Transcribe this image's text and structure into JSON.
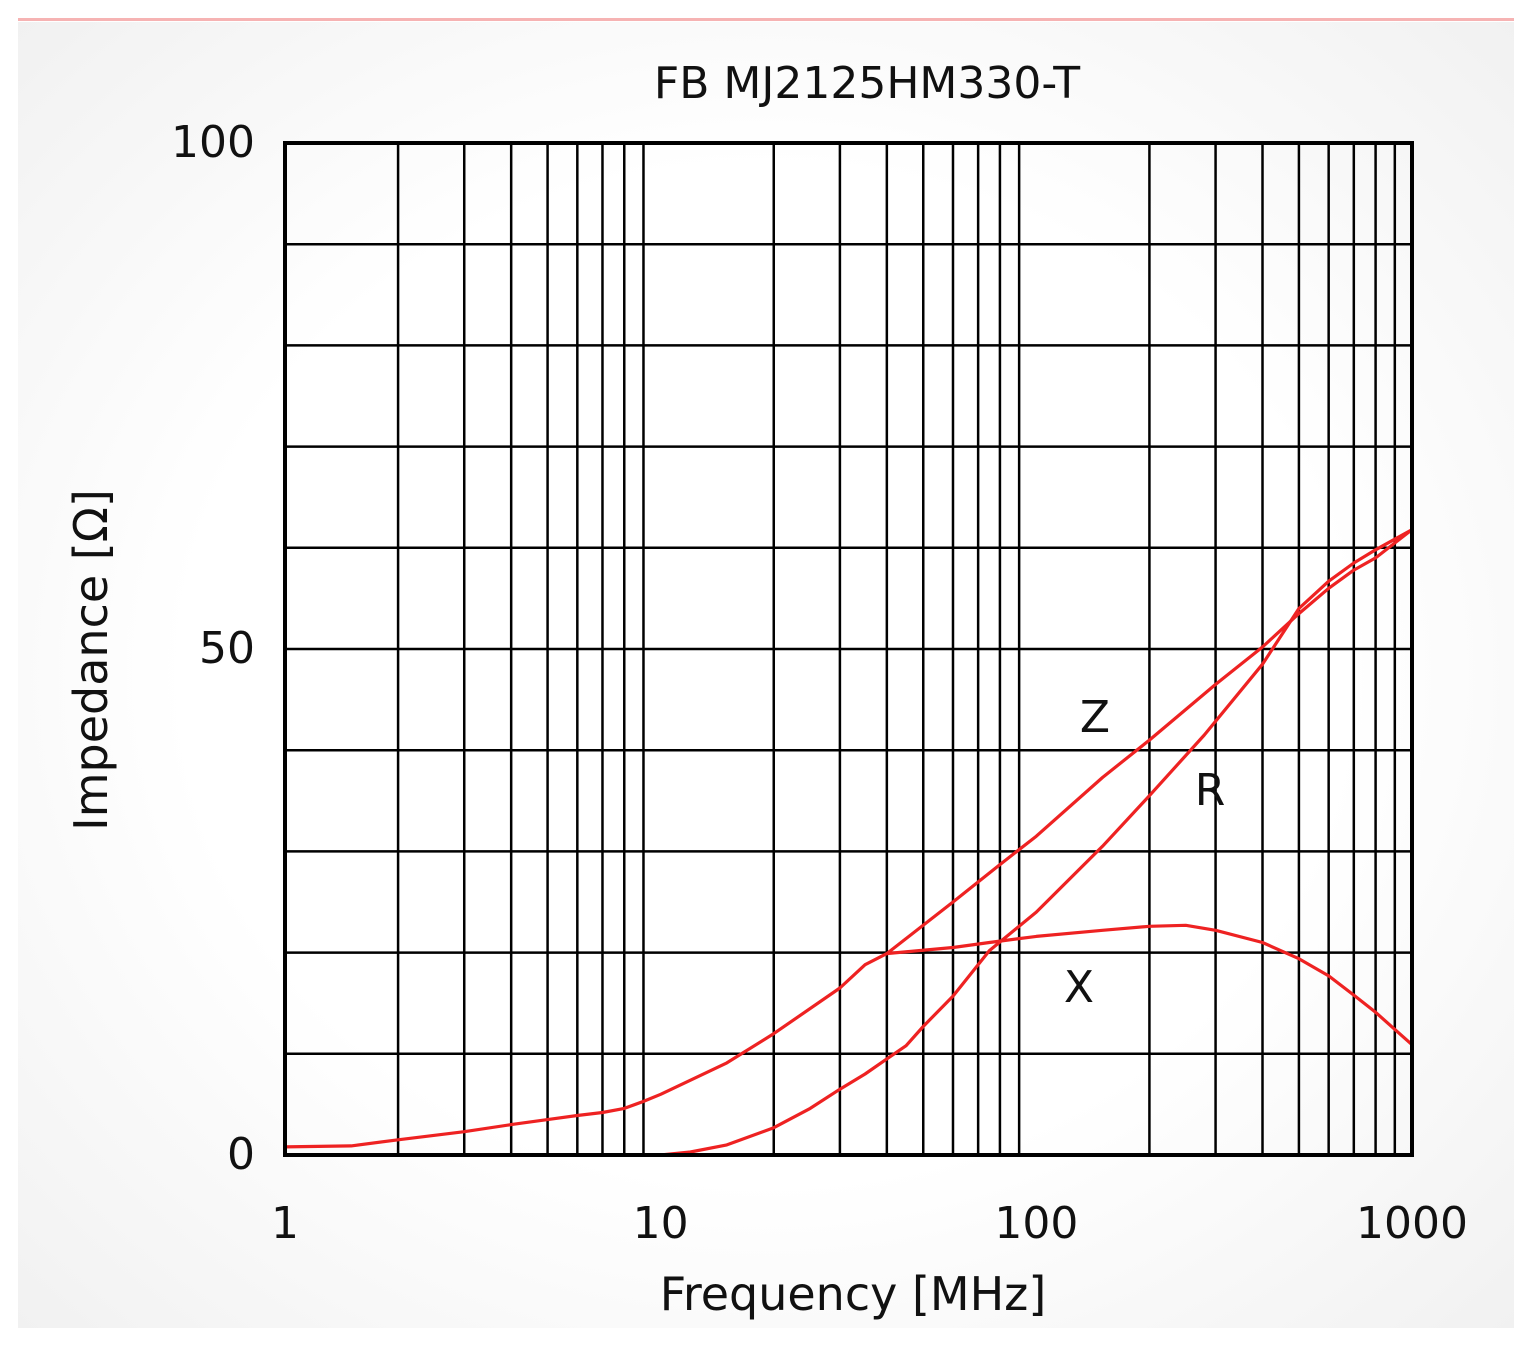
{
  "chart_data": {
    "type": "line",
    "title": "FB  MJ2125HM330-T",
    "xlabel": "Frequency [MHz]",
    "ylabel": "Impedance [Ω]",
    "xscale": "log",
    "xlim": [
      1,
      1000
    ],
    "ylim": [
      0,
      100
    ],
    "x_ticks": [
      "1",
      "10",
      "100",
      "1000"
    ],
    "y_ticks": [
      "0",
      "50",
      "100"
    ],
    "grid": true,
    "colors": {
      "curve": "#ee2222",
      "grid": "#000000"
    },
    "series": [
      {
        "name": "Z",
        "points": [
          [
            1,
            0.8
          ],
          [
            1.5,
            0.9
          ],
          [
            2,
            1.5
          ],
          [
            3,
            2.3
          ],
          [
            4,
            3.0
          ],
          [
            5,
            3.5
          ],
          [
            6,
            3.9
          ],
          [
            7,
            4.2
          ],
          [
            8,
            4.6
          ],
          [
            9,
            5.3
          ],
          [
            10,
            6.0
          ],
          [
            15,
            9.1
          ],
          [
            20,
            12.0
          ],
          [
            30,
            16.5
          ],
          [
            35,
            18.8
          ],
          [
            40,
            19.9
          ],
          [
            60,
            25.0
          ],
          [
            80,
            28.7
          ],
          [
            100,
            31.5
          ],
          [
            150,
            37.3
          ],
          [
            200,
            41.0
          ],
          [
            300,
            46.5
          ],
          [
            400,
            50.2
          ],
          [
            500,
            53.5
          ],
          [
            600,
            56.0
          ],
          [
            700,
            57.8
          ],
          [
            800,
            59.0
          ],
          [
            1000,
            61.8
          ]
        ]
      },
      {
        "name": "R",
        "points": [
          [
            1,
            0
          ],
          [
            10,
            0
          ],
          [
            12,
            0.3
          ],
          [
            15,
            1.0
          ],
          [
            20,
            2.7
          ],
          [
            25,
            4.6
          ],
          [
            30,
            6.5
          ],
          [
            35,
            8.0
          ],
          [
            40,
            9.5
          ],
          [
            45,
            10.8
          ],
          [
            50,
            12.7
          ],
          [
            60,
            15.7
          ],
          [
            75,
            20.2
          ],
          [
            100,
            24.0
          ],
          [
            150,
            30.5
          ],
          [
            200,
            35.5
          ],
          [
            280,
            41.5
          ],
          [
            400,
            48.5
          ],
          [
            500,
            54.0
          ],
          [
            600,
            56.7
          ],
          [
            700,
            58.5
          ],
          [
            800,
            59.8
          ],
          [
            1000,
            61.8
          ]
        ]
      },
      {
        "name": "X",
        "points": [
          [
            40,
            19.9
          ],
          [
            60,
            20.5
          ],
          [
            75,
            21.0
          ],
          [
            100,
            21.6
          ],
          [
            150,
            22.2
          ],
          [
            200,
            22.6
          ],
          [
            250,
            22.7
          ],
          [
            300,
            22.2
          ],
          [
            400,
            21.0
          ],
          [
            500,
            19.4
          ],
          [
            600,
            17.7
          ],
          [
            700,
            15.8
          ],
          [
            800,
            14.1
          ],
          [
            1000,
            10.9
          ]
        ]
      }
    ],
    "curve_labels": [
      "Z",
      "R",
      "X"
    ]
  }
}
